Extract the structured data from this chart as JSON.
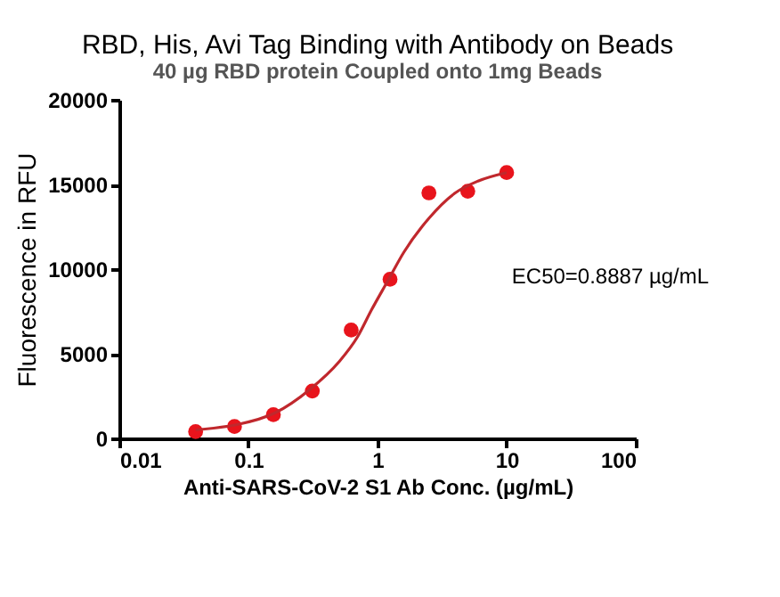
{
  "chart_data": {
    "type": "scatter",
    "title": "RBD, His, Avi Tag Binding with Antibody on Beads",
    "subtitle": "40 µg RBD protein Coupled onto 1mg Beads",
    "xlabel": "Anti-SARS-CoV-2 S1 Ab Conc. (µg/mL)",
    "ylabel": "Fluorescence in RFU",
    "annotations": [
      "EC50=0.8887 µg/mL"
    ],
    "log": "x",
    "xlim": [
      0.01,
      100
    ],
    "xticks": [
      0.01,
      0.1,
      1,
      10,
      100
    ],
    "ylim": [
      0,
      20000
    ],
    "yticks": [
      0,
      5000,
      10000,
      15000,
      20000
    ],
    "grid": false,
    "series": [
      {
        "marker": "circle",
        "color": "#e8141c",
        "x": [
          0.039,
          0.078,
          0.156,
          0.3125,
          0.625,
          1.25,
          2.5,
          5,
          10
        ],
        "values": [
          400,
          700,
          1400,
          2800,
          6400,
          9400,
          14500,
          14600,
          15700
        ]
      },
      {
        "type": "line",
        "marker": "none",
        "color": "#c0282d",
        "x": [
          0.039,
          0.08,
          0.16,
          0.3,
          0.5,
          0.7,
          0.9,
          1.2,
          1.6,
          2.5,
          4,
          6,
          10
        ],
        "values": [
          500,
          800,
          1500,
          2900,
          4500,
          6000,
          7600,
          9300,
          11000,
          13000,
          14500,
          15200,
          15700
        ]
      }
    ]
  }
}
